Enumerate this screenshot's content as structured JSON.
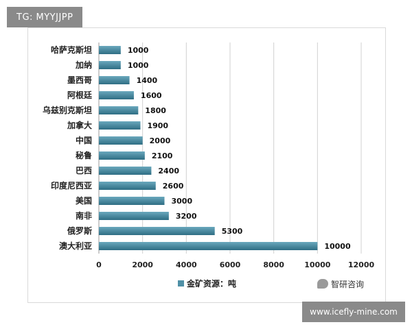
{
  "watermark_top": "TG: MYYJJPP",
  "watermark_bottom": "www.icefly-mine.com",
  "brand_mark": "智研咨询",
  "colors": {
    "bar": "#4f90a6",
    "bar_dark": "#2f6e84",
    "grid": "#d0d0d0"
  },
  "chart_data": {
    "type": "bar",
    "orientation": "horizontal",
    "categories": [
      "哈萨克斯坦",
      "加纳",
      "墨西哥",
      "阿根廷",
      "乌兹别克斯坦",
      "加拿大",
      "中国",
      "秘鲁",
      "巴西",
      "印度尼西亚",
      "美国",
      "南非",
      "俄罗斯",
      "澳大利亚"
    ],
    "series": [
      {
        "name": "金矿资源：吨",
        "values": [
          1000,
          1000,
          1400,
          1600,
          1800,
          1900,
          2000,
          2100,
          2400,
          2600,
          3000,
          3200,
          5300,
          10000
        ]
      }
    ],
    "xlim": [
      0,
      12000
    ],
    "xticks": [
      0,
      2000,
      4000,
      6000,
      8000,
      10000,
      12000
    ],
    "grid": true,
    "legend": "bottom"
  }
}
